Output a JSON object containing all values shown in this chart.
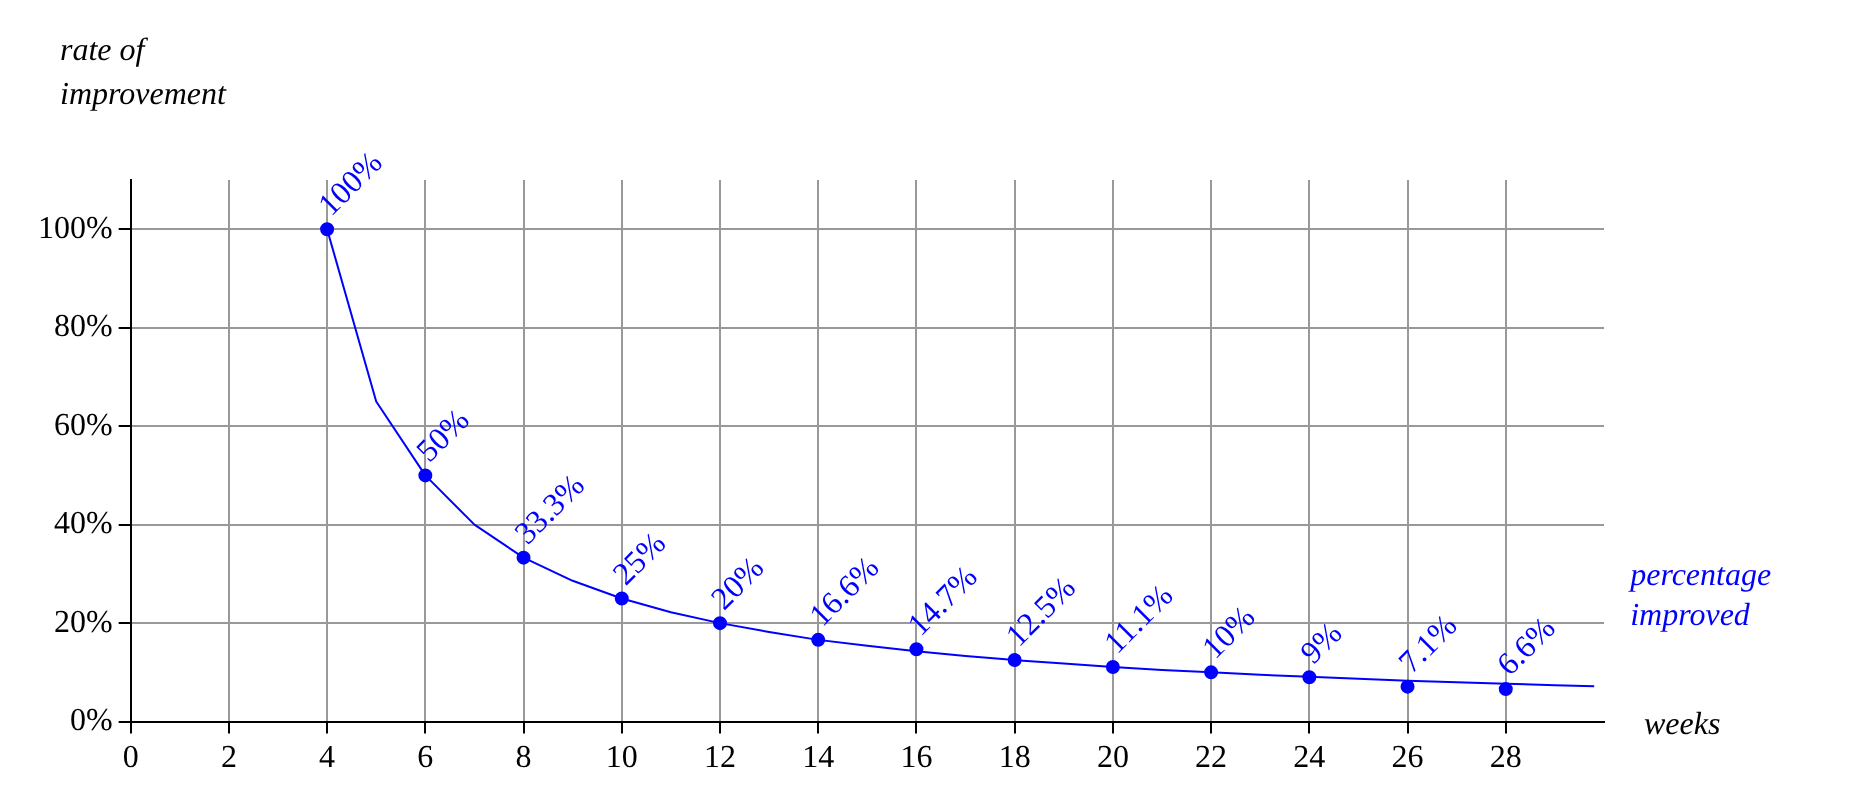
{
  "chart_data": {
    "type": "line",
    "xlabel": "weeks",
    "ylabel": "rate of improvement",
    "xlim": [
      0,
      30
    ],
    "ylim": [
      0,
      110
    ],
    "xticks": [
      0,
      2,
      4,
      6,
      8,
      10,
      12,
      14,
      16,
      18,
      20,
      22,
      24,
      26,
      28
    ],
    "yticks": [
      {
        "value": 0,
        "label": "0%"
      },
      {
        "value": 20,
        "label": "20%"
      },
      {
        "value": 40,
        "label": "40%"
      },
      {
        "value": 60,
        "label": "60%"
      },
      {
        "value": 80,
        "label": "80%"
      },
      {
        "value": 100,
        "label": "100%"
      }
    ],
    "grid": true,
    "series": [
      {
        "name": "percentage improved",
        "color": "#0000ff",
        "marker": "none",
        "x": [
          4,
          5,
          6,
          7,
          8,
          9,
          10,
          11,
          12,
          13,
          14,
          15,
          16,
          17,
          18,
          19,
          20,
          21,
          22,
          23,
          24,
          25,
          26,
          27,
          28,
          29,
          29.8
        ],
        "values": [
          100,
          65,
          50,
          40,
          33.3,
          28.6,
          25,
          22.2,
          20,
          18.2,
          16.6,
          15.4,
          14.3,
          13.3,
          12.5,
          11.8,
          11.1,
          10.5,
          10,
          9.5,
          9.1,
          8.7,
          8.3,
          8,
          7.7,
          7.4,
          7.2
        ]
      },
      {
        "type": "scatter",
        "color": "#0000ff",
        "marker": "circle",
        "x": [
          4,
          6,
          8,
          10,
          12,
          14,
          16,
          18,
          20,
          22,
          24,
          26,
          28
        ],
        "values": [
          100,
          50,
          33.3,
          25,
          20,
          16.6,
          14.7,
          12.5,
          11.1,
          10,
          9,
          7.1,
          6.6
        ],
        "value_labels": [
          "100%",
          "50%",
          "33.3%",
          "25%",
          "20%",
          "16.6%",
          "14.7%",
          "12.5%",
          "11.1%",
          "10%",
          "9%",
          "7.1%",
          "6.6%"
        ]
      }
    ]
  }
}
